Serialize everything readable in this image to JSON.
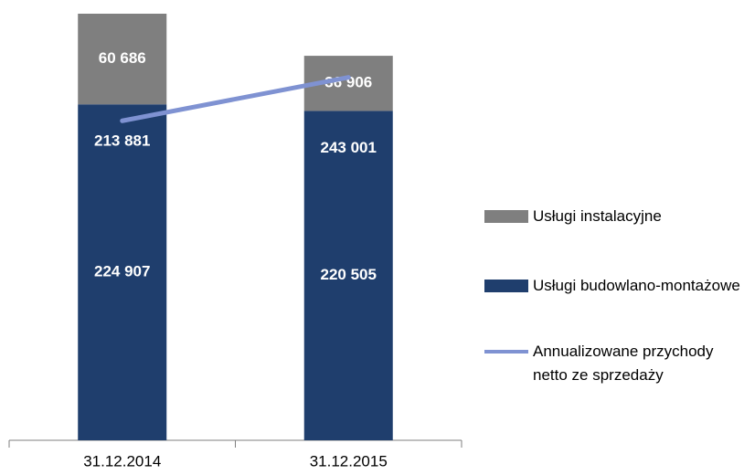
{
  "chart_data": {
    "type": "stacked_bar_line",
    "categories": [
      "31.12.2014",
      "31.12.2015"
    ],
    "series": [
      {
        "name": "Usługi budowlano-montażowe",
        "color": "#1f3e6d",
        "type": "bar",
        "values": [
          224907,
          220505
        ],
        "value_labels": [
          "224 907",
          "220 505"
        ]
      },
      {
        "name": "Usługi instalacyjne",
        "color": "#7f7f7f",
        "type": "bar",
        "values": [
          60686,
          36906
        ],
        "value_labels": [
          "60 686",
          "36 906"
        ]
      },
      {
        "name": "Annualizowane przychody netto ze sprzedaży",
        "color": "#7f92d2",
        "type": "line",
        "values": [
          213881,
          243001
        ],
        "value_labels": [
          "213 881",
          "243 001"
        ]
      }
    ]
  }
}
